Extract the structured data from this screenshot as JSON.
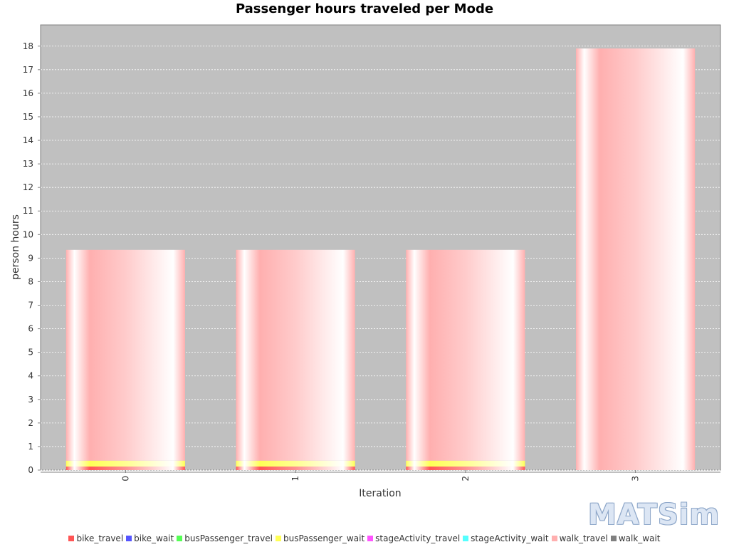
{
  "chart_data": {
    "type": "bar",
    "stacked": true,
    "title": "Passenger hours traveled per Mode",
    "xlabel": "Iteration",
    "ylabel": "person hours",
    "categories": [
      "0",
      "1",
      "2",
      "3"
    ],
    "ylim": [
      0,
      18.9
    ],
    "yticks": [
      0,
      1,
      2,
      3,
      4,
      5,
      6,
      7,
      8,
      9,
      10,
      11,
      12,
      13,
      14,
      15,
      16,
      17,
      18
    ],
    "grid": true,
    "legend_position": "bottom",
    "series": [
      {
        "name": "bike_travel",
        "color": "#ff5555",
        "values": [
          0.15,
          0.15,
          0.15,
          0
        ]
      },
      {
        "name": "bike_wait",
        "color": "#5555ff",
        "values": [
          0,
          0,
          0,
          0
        ]
      },
      {
        "name": "busPassenger_travel",
        "color": "#55ff55",
        "values": [
          0,
          0,
          0,
          0
        ]
      },
      {
        "name": "busPassenger_wait",
        "color": "#ffff55",
        "values": [
          0.25,
          0.25,
          0.25,
          0
        ]
      },
      {
        "name": "stageActivity_travel",
        "color": "#ff55ff",
        "values": [
          0,
          0,
          0,
          0
        ]
      },
      {
        "name": "stageActivity_wait",
        "color": "#55ffff",
        "values": [
          0,
          0,
          0,
          0
        ]
      },
      {
        "name": "walk_travel",
        "color": "#ffafaf",
        "values": [
          8.95,
          8.95,
          8.95,
          17.9
        ]
      },
      {
        "name": "walk_wait",
        "color": "#808080",
        "values": [
          0,
          0,
          0,
          0
        ]
      }
    ]
  },
  "logo_text": "MATSim"
}
